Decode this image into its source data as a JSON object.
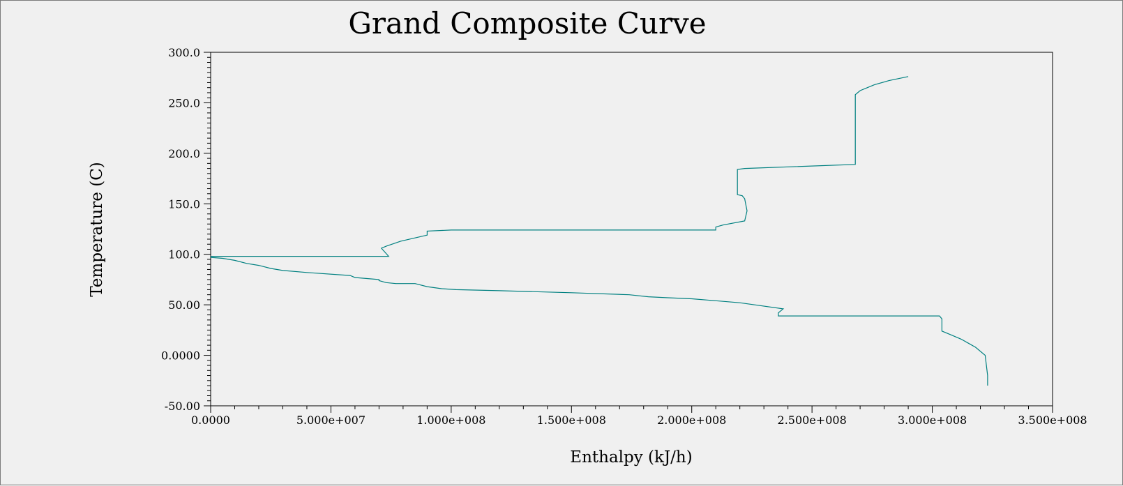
{
  "chart_data": {
    "type": "line",
    "title": "Grand Composite Curve",
    "xlabel": "Enthalpy (kJ/h)",
    "ylabel": "Temperature (C)",
    "xlim": [
      0,
      350000000
    ],
    "ylim": [
      -50,
      300
    ],
    "x_ticks": [
      0,
      50000000,
      100000000,
      150000000,
      200000000,
      250000000,
      300000000,
      350000000
    ],
    "x_tick_labels": [
      "0.0000",
      "5.000e+007",
      "1.000e+008",
      "1.500e+008",
      "2.000e+008",
      "2.500e+008",
      "3.000e+008",
      "3.500e+008"
    ],
    "y_ticks": [
      300,
      250,
      200,
      150,
      100,
      50,
      0,
      -50
    ],
    "y_tick_labels": [
      "300.0",
      "250.0",
      "200.0",
      "150.0",
      "100.0",
      "50.00",
      "0.0000",
      "-50.00"
    ],
    "grid": false,
    "line_color": "#008080",
    "series": [
      {
        "x": [
          0,
          74000000,
          71000000,
          73000000,
          79000000,
          90000000,
          90000000,
          100000000,
          210000000,
          210000000,
          213000000,
          222000000,
          223000000,
          222000000,
          221000000,
          219000000,
          219000000,
          222000000,
          268000000,
          268000000,
          270000000,
          276000000,
          282000000,
          290000000
        ],
        "y": [
          98,
          98,
          106,
          108,
          113,
          119,
          123,
          124,
          124,
          127,
          129,
          133,
          143,
          155,
          158,
          159,
          184,
          185,
          189,
          258,
          262,
          268,
          272,
          276
        ]
      },
      {
        "x": [
          0,
          5000000,
          10000000,
          15000000,
          20000000,
          25000000,
          30000000,
          40000000,
          58000000,
          60000000,
          65000000,
          70000000,
          70000000,
          73000000,
          77000000,
          85000000,
          90000000,
          96000000,
          102000000,
          120000000,
          150000000,
          174000000,
          182000000,
          190000000,
          200000000,
          210000000,
          220000000,
          238000000,
          236000000,
          236000000,
          303000000,
          304000000,
          304000000,
          308000000,
          312000000,
          315000000,
          318000000,
          322000000,
          323000000,
          323000000
        ],
        "y": [
          97,
          96,
          94,
          91,
          89,
          86,
          84,
          82,
          79,
          77,
          76,
          75,
          74,
          72,
          71,
          71,
          68,
          66,
          65,
          64,
          62,
          60,
          58,
          57,
          56,
          54,
          52,
          46,
          42,
          39,
          39,
          36,
          24,
          20,
          16,
          12,
          8,
          0,
          -20,
          -30
        ]
      }
    ]
  }
}
